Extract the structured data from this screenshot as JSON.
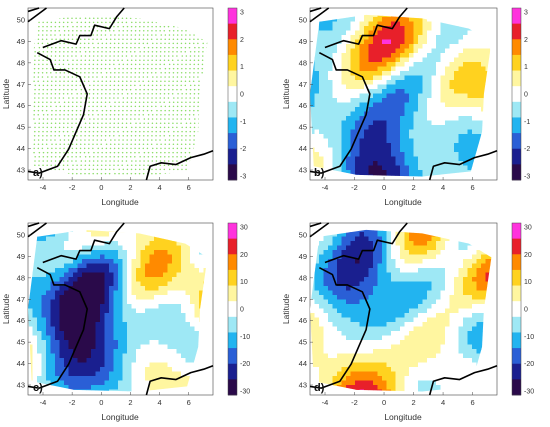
{
  "figure": {
    "colormap": [
      "#2a0a4a",
      "#1a1f8f",
      "#2a5fd6",
      "#22b4f0",
      "#9ee8f5",
      "#ffffff",
      "#fff6a0",
      "#ffd21f",
      "#ff8a00",
      "#e8202a",
      "#ff33dd"
    ],
    "coast_color": "#000000",
    "panels": [
      {
        "id": "a",
        "letter": "a)",
        "xlabel": "Longitude",
        "ylabel": "Latitude",
        "xticks": [
          "-4",
          "-2",
          "0",
          "2",
          "4",
          "6"
        ],
        "yticks": [
          "50",
          "49",
          "48",
          "47",
          "46",
          "45",
          "44",
          "43"
        ],
        "colorbar_ticks": [
          "3",
          "2",
          "1",
          "0",
          "-1",
          "-2",
          "-3"
        ],
        "fill": "dots",
        "dot_color": "#7ed957"
      },
      {
        "id": "b",
        "letter": "b)",
        "xlabel": "Longitude",
        "ylabel": "Latitude",
        "xticks": [
          "-4",
          "-2",
          "0",
          "2",
          "4",
          "6"
        ],
        "yticks": [
          "50",
          "49",
          "48",
          "47",
          "46",
          "45",
          "44",
          "43"
        ],
        "colorbar_ticks": [
          "3",
          "2",
          "1",
          "0",
          "-1",
          "-2",
          "-3"
        ],
        "fill": "field"
      },
      {
        "id": "c",
        "letter": "c)",
        "xlabel": "Longitude",
        "ylabel": "Latitude",
        "xticks": [
          "-4",
          "-2",
          "0",
          "2",
          "4",
          "6"
        ],
        "yticks": [
          "50",
          "49",
          "48",
          "47",
          "46",
          "45",
          "44",
          "43"
        ],
        "colorbar_ticks": [
          "30",
          "20",
          "10",
          "0",
          "-10",
          "-20",
          "-30"
        ],
        "fill": "field"
      },
      {
        "id": "d",
        "letter": "d)",
        "xlabel": "Longitude",
        "ylabel": "Latitude",
        "xticks": [
          "-4",
          "-2",
          "0",
          "2",
          "4",
          "6"
        ],
        "yticks": [
          "50",
          "49",
          "48",
          "47",
          "46",
          "45",
          "44",
          "43"
        ],
        "colorbar_ticks": [
          "30",
          "20",
          "10",
          "0",
          "-10",
          "-20",
          "-30"
        ],
        "fill": "field"
      }
    ]
  }
}
